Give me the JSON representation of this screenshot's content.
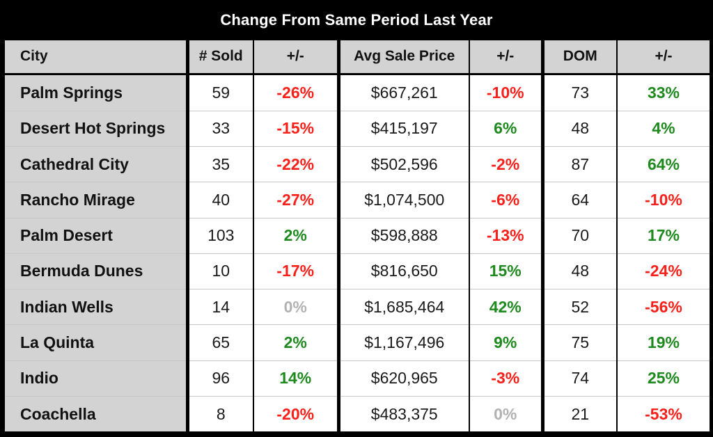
{
  "title": "Change From Same Period Last Year",
  "colors": {
    "positive": "#1e8a1e",
    "negative": "#f8201a",
    "neutral": "#b2b2b2",
    "header_bg": "#d3d3d3",
    "title_bg": "#000000",
    "title_text": "#ffffff"
  },
  "chart_data": {
    "type": "table",
    "title": "Change From Same Period Last Year",
    "columns": [
      "City",
      "# Sold",
      "+/-",
      "Avg Sale Price",
      "+/-",
      "DOM",
      "+/-"
    ],
    "rows": [
      [
        "Palm Springs",
        "59",
        "-26%",
        "$667,261",
        "-10%",
        "73",
        "33%"
      ],
      [
        "Desert Hot Springs",
        "33",
        "-15%",
        "$415,197",
        "6%",
        "48",
        "4%"
      ],
      [
        "Cathedral City",
        "35",
        "-22%",
        "$502,596",
        "-2%",
        "87",
        "64%"
      ],
      [
        "Rancho Mirage",
        "40",
        "-27%",
        "$1,074,500",
        "-6%",
        "64",
        "-10%"
      ],
      [
        "Palm Desert",
        "103",
        "2%",
        "$598,888",
        "-13%",
        "70",
        "17%"
      ],
      [
        "Bermuda Dunes",
        "10",
        "-17%",
        "$816,650",
        "15%",
        "48",
        "-24%"
      ],
      [
        "Indian Wells",
        "14",
        "0%",
        "$1,685,464",
        "42%",
        "52",
        "-56%"
      ],
      [
        "La Quinta",
        "65",
        "2%",
        "$1,167,496",
        "9%",
        "75",
        "19%"
      ],
      [
        "Indio",
        "96",
        "14%",
        "$620,965",
        "-3%",
        "74",
        "25%"
      ],
      [
        "Coachella",
        "8",
        "-20%",
        "$483,375",
        "0%",
        "21",
        "-53%"
      ]
    ]
  }
}
